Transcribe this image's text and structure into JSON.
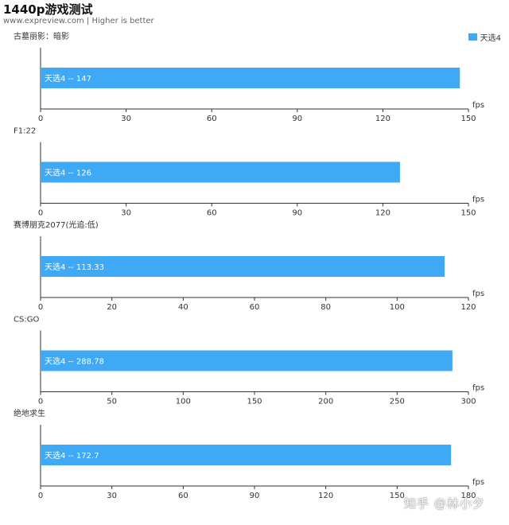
{
  "header": {
    "title": "1440p游戏测试",
    "subtitle": "www.expreview.com | Higher is better"
  },
  "legend": {
    "label": "天选4",
    "color": "#3fa9f5"
  },
  "watermark": "知乎 @林小夕",
  "chart_data": [
    {
      "type": "bar",
      "title": "古墓丽影：暗影",
      "categories": [
        "天选4"
      ],
      "values": [
        147
      ],
      "value_label": "天选4 -- 147",
      "unit": "fps",
      "xlim": [
        0,
        150
      ],
      "ticks": [
        0,
        30,
        60,
        90,
        120,
        150
      ]
    },
    {
      "type": "bar",
      "title": "F1:22",
      "categories": [
        "天选4"
      ],
      "values": [
        126
      ],
      "value_label": "天选4 -- 126",
      "unit": "fps",
      "xlim": [
        0,
        150
      ],
      "ticks": [
        0,
        30,
        60,
        90,
        120,
        150
      ]
    },
    {
      "type": "bar",
      "title": "赛博朋克2077(光追:低)",
      "categories": [
        "天选4"
      ],
      "values": [
        113.33
      ],
      "value_label": "天选4 -- 113.33",
      "unit": "fps",
      "xlim": [
        0,
        120
      ],
      "ticks": [
        0,
        20,
        40,
        60,
        80,
        100,
        120
      ]
    },
    {
      "type": "bar",
      "title": "CS:GO",
      "categories": [
        "天选4"
      ],
      "values": [
        288.78
      ],
      "value_label": "天选4 -- 288.78",
      "unit": "fps",
      "xlim": [
        0,
        300
      ],
      "ticks": [
        0,
        50,
        100,
        150,
        200,
        250,
        300
      ]
    },
    {
      "type": "bar",
      "title": "绝地求生",
      "categories": [
        "天选4"
      ],
      "values": [
        172.7
      ],
      "value_label": "天选4 -- 172.7",
      "unit": "fps",
      "xlim": [
        0,
        180
      ],
      "ticks": [
        0,
        30,
        60,
        90,
        120,
        150,
        180
      ]
    }
  ]
}
